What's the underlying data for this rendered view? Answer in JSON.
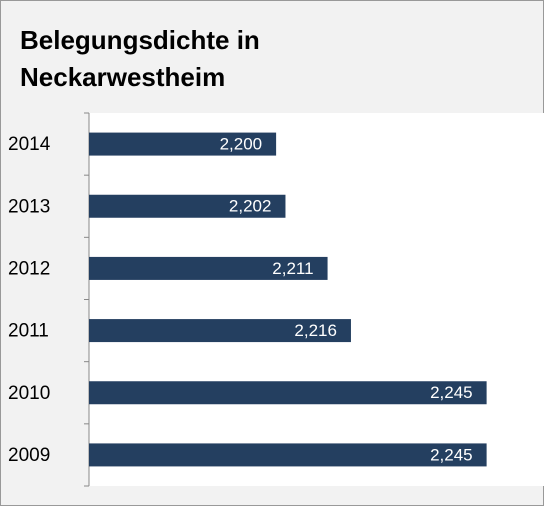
{
  "chart_data": {
    "type": "barh",
    "title": "Belegungsdichte in Neckarwestheim",
    "categories": [
      "2014",
      "2013",
      "2012",
      "2011",
      "2010",
      "2009"
    ],
    "values": [
      2.2,
      2.202,
      2.211,
      2.216,
      2.245,
      2.245
    ],
    "value_labels": [
      "2,200",
      "2,202",
      "2,211",
      "2,216",
      "2,245",
      "2,245"
    ],
    "color": "#243f60",
    "xlim": [
      2.16,
      2.25
    ]
  }
}
